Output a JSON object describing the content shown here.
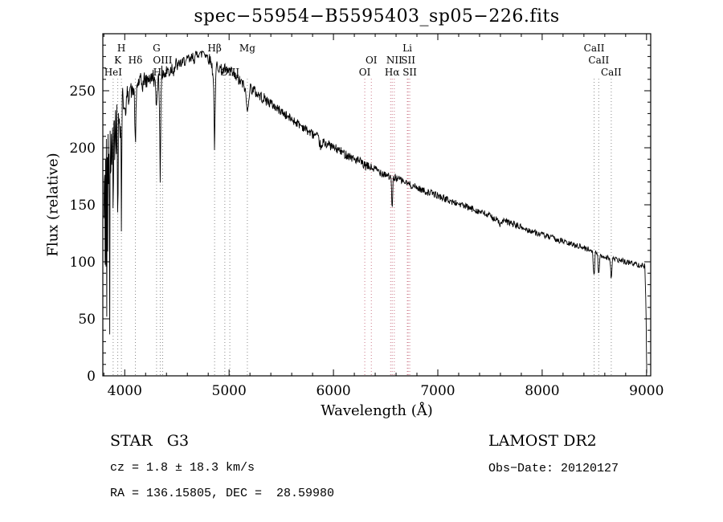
{
  "chart_data": {
    "type": "line",
    "title": "spec−55954−B5595403_sp05−226.fits",
    "xlabel": "Wavelength (Å)",
    "ylabel": "Flux (relative)",
    "xlim": [
      3790,
      9040
    ],
    "ylim": [
      0,
      300
    ],
    "xticks": [
      4000,
      5000,
      6000,
      7000,
      8000,
      9000
    ],
    "yticks": [
      0,
      50,
      100,
      150,
      200,
      250
    ],
    "x_minor_step": 200,
    "y_minor_step": 10,
    "grid": false,
    "line_color": "#000000",
    "marker_color_gray": "#8a8a8a",
    "marker_color_red": "#cc7788",
    "spectral_lines": [
      {
        "label": "HeI",
        "wl": 3889,
        "row": 3,
        "color": "#8a8a8a"
      },
      {
        "label": "K",
        "wl": 3933,
        "row": 2,
        "color": "#8a8a8a"
      },
      {
        "label": "H",
        "wl": 3968,
        "row": 1,
        "color": "#8a8a8a"
      },
      {
        "label": "Hδ",
        "wl": 4102,
        "row": 2,
        "color": "#8a8a8a"
      },
      {
        "label": "G",
        "wl": 4305,
        "row": 1,
        "color": "#8a8a8a"
      },
      {
        "label": "Hγ",
        "wl": 4340,
        "row": 3,
        "color": "#8a8a8a"
      },
      {
        "label": "OIII",
        "wl": 4363,
        "row": 2,
        "color": "#8a8a8a"
      },
      {
        "label": "Hβ",
        "wl": 4861,
        "row": 1,
        "color": "#8a8a8a"
      },
      {
        "label": "",
        "wl": 4959,
        "row": 3,
        "color": "#8a8a8a"
      },
      {
        "label": "OIII",
        "wl": 5007,
        "row": 3,
        "color": "#8a8a8a"
      },
      {
        "label": "Mg",
        "wl": 5175,
        "row": 1,
        "color": "#8a8a8a"
      },
      {
        "label": "OI",
        "wl": 6300,
        "row": 3,
        "color": "#cc7788"
      },
      {
        "label": "OI",
        "wl": 6363,
        "row": 2,
        "color": "#cc7788"
      },
      {
        "label": "",
        "wl": 6548,
        "row": 2,
        "color": "#cc7788"
      },
      {
        "label": "Hα",
        "wl": 6563,
        "row": 3,
        "color": "#cc7788"
      },
      {
        "label": "NII",
        "wl": 6583,
        "row": 2,
        "color": "#cc7788"
      },
      {
        "label": "Li",
        "wl": 6708,
        "row": 1,
        "color": "#cc7788"
      },
      {
        "label": "SII",
        "wl": 6716,
        "row": 2,
        "color": "#cc7788"
      },
      {
        "label": "SII",
        "wl": 6731,
        "row": 3,
        "color": "#cc7788"
      },
      {
        "label": "CaII",
        "wl": 8498,
        "row": 1,
        "color": "#8a8a8a"
      },
      {
        "label": "CaII",
        "wl": 8542,
        "row": 2,
        "color": "#8a8a8a"
      },
      {
        "label": "CaII",
        "wl": 8662,
        "row": 3,
        "color": "#8a8a8a"
      }
    ],
    "spectrum": {
      "seed": 42,
      "noise_regions": [
        [
          3790,
          4000,
          16
        ],
        [
          4000,
          4500,
          7
        ],
        [
          4500,
          5400,
          5
        ],
        [
          5400,
          6600,
          4
        ],
        [
          6600,
          7800,
          3
        ],
        [
          7800,
          9040,
          2.5
        ]
      ],
      "points": [
        [
          3800,
          135
        ],
        [
          3806,
          190
        ],
        [
          3810,
          140
        ],
        [
          3813,
          68
        ],
        [
          3816,
          200
        ],
        [
          3820,
          95
        ],
        [
          3824,
          215
        ],
        [
          3828,
          48
        ],
        [
          3832,
          180
        ],
        [
          3836,
          110
        ],
        [
          3840,
          220
        ],
        [
          3845,
          140
        ],
        [
          3850,
          218
        ],
        [
          3856,
          46
        ],
        [
          3860,
          215
        ],
        [
          3866,
          150
        ],
        [
          3872,
          228
        ],
        [
          3878,
          165
        ],
        [
          3884,
          232
        ],
        [
          3889,
          122
        ],
        [
          3894,
          226
        ],
        [
          3900,
          238
        ],
        [
          3906,
          180
        ],
        [
          3912,
          232
        ],
        [
          3920,
          205
        ],
        [
          3926,
          238
        ],
        [
          3933,
          116
        ],
        [
          3940,
          232
        ],
        [
          3948,
          240
        ],
        [
          3955,
          200
        ],
        [
          3962,
          238
        ],
        [
          3968,
          136
        ],
        [
          3975,
          238
        ],
        [
          3985,
          244
        ],
        [
          4000,
          240
        ],
        [
          4010,
          222
        ],
        [
          4020,
          250
        ],
        [
          4035,
          242
        ],
        [
          4050,
          254
        ],
        [
          4070,
          248
        ],
        [
          4090,
          252
        ],
        [
          4097,
          222
        ],
        [
          4102,
          192
        ],
        [
          4108,
          228
        ],
        [
          4115,
          254
        ],
        [
          4130,
          257
        ],
        [
          4150,
          259
        ],
        [
          4170,
          254
        ],
        [
          4190,
          261
        ],
        [
          4210,
          257
        ],
        [
          4230,
          263
        ],
        [
          4250,
          259
        ],
        [
          4270,
          264
        ],
        [
          4290,
          257
        ],
        [
          4300,
          242
        ],
        [
          4305,
          234
        ],
        [
          4312,
          254
        ],
        [
          4325,
          263
        ],
        [
          4334,
          232
        ],
        [
          4340,
          176
        ],
        [
          4347,
          237
        ],
        [
          4355,
          265
        ],
        [
          4370,
          267
        ],
        [
          4390,
          263
        ],
        [
          4410,
          269
        ],
        [
          4430,
          266
        ],
        [
          4450,
          271
        ],
        [
          4470,
          269
        ],
        [
          4490,
          273
        ],
        [
          4510,
          271
        ],
        [
          4530,
          275
        ],
        [
          4550,
          273
        ],
        [
          4570,
          277
        ],
        [
          4590,
          275
        ],
        [
          4610,
          278
        ],
        [
          4630,
          276
        ],
        [
          4650,
          280
        ],
        [
          4670,
          278
        ],
        [
          4690,
          282
        ],
        [
          4710,
          284
        ],
        [
          4730,
          281
        ],
        [
          4750,
          285
        ],
        [
          4770,
          283
        ],
        [
          4790,
          280
        ],
        [
          4810,
          278
        ],
        [
          4830,
          275
        ],
        [
          4850,
          262
        ],
        [
          4861,
          196
        ],
        [
          4872,
          260
        ],
        [
          4880,
          273
        ],
        [
          4900,
          271
        ],
        [
          4920,
          269
        ],
        [
          4940,
          267
        ],
        [
          4960,
          269
        ],
        [
          4980,
          266
        ],
        [
          5000,
          268
        ],
        [
          5030,
          265
        ],
        [
          5060,
          262
        ],
        [
          5090,
          259
        ],
        [
          5120,
          257
        ],
        [
          5150,
          253
        ],
        [
          5167,
          240
        ],
        [
          5175,
          228
        ],
        [
          5185,
          242
        ],
        [
          5200,
          253
        ],
        [
          5230,
          251
        ],
        [
          5260,
          248
        ],
        [
          5290,
          246
        ],
        [
          5320,
          244
        ],
        [
          5350,
          242
        ],
        [
          5400,
          239
        ],
        [
          5450,
          235
        ],
        [
          5500,
          232
        ],
        [
          5550,
          228
        ],
        [
          5600,
          225
        ],
        [
          5650,
          222
        ],
        [
          5700,
          219
        ],
        [
          5750,
          215
        ],
        [
          5800,
          212
        ],
        [
          5850,
          209
        ],
        [
          5889,
          198
        ],
        [
          5900,
          205
        ],
        [
          5950,
          203
        ],
        [
          6000,
          200
        ],
        [
          6050,
          198
        ],
        [
          6100,
          195
        ],
        [
          6150,
          193
        ],
        [
          6200,
          190
        ],
        [
          6250,
          188
        ],
        [
          6300,
          184
        ],
        [
          6350,
          183
        ],
        [
          6400,
          181
        ],
        [
          6450,
          179
        ],
        [
          6500,
          177
        ],
        [
          6540,
          175
        ],
        [
          6555,
          168
        ],
        [
          6563,
          144
        ],
        [
          6572,
          171
        ],
        [
          6590,
          174
        ],
        [
          6620,
          173
        ],
        [
          6660,
          171
        ],
        [
          6700,
          169
        ],
        [
          6750,
          167
        ],
        [
          6800,
          165
        ],
        [
          6850,
          163
        ],
        [
          6900,
          161
        ],
        [
          6950,
          160
        ],
        [
          7000,
          158
        ],
        [
          7050,
          156
        ],
        [
          7100,
          154
        ],
        [
          7150,
          152
        ],
        [
          7200,
          151
        ],
        [
          7250,
          149
        ],
        [
          7300,
          147
        ],
        [
          7350,
          146
        ],
        [
          7400,
          144
        ],
        [
          7450,
          142
        ],
        [
          7500,
          140
        ],
        [
          7550,
          138
        ],
        [
          7590,
          134
        ],
        [
          7605,
          132
        ],
        [
          7620,
          136
        ],
        [
          7650,
          135
        ],
        [
          7700,
          134
        ],
        [
          7750,
          132
        ],
        [
          7800,
          130
        ],
        [
          7850,
          128
        ],
        [
          7900,
          127
        ],
        [
          7950,
          125
        ],
        [
          8000,
          124
        ],
        [
          8050,
          122
        ],
        [
          8100,
          121
        ],
        [
          8150,
          119
        ],
        [
          8200,
          118
        ],
        [
          8250,
          116
        ],
        [
          8300,
          115
        ],
        [
          8350,
          114
        ],
        [
          8400,
          112
        ],
        [
          8440,
          111
        ],
        [
          8480,
          110
        ],
        [
          8498,
          88
        ],
        [
          8510,
          108
        ],
        [
          8530,
          107
        ],
        [
          8542,
          86
        ],
        [
          8555,
          106
        ],
        [
          8580,
          105
        ],
        [
          8620,
          104
        ],
        [
          8650,
          103
        ],
        [
          8662,
          84
        ],
        [
          8675,
          103
        ],
        [
          8700,
          102
        ],
        [
          8750,
          101
        ],
        [
          8800,
          100
        ],
        [
          8850,
          99
        ],
        [
          8900,
          98
        ],
        [
          8950,
          97
        ],
        [
          8985,
          96
        ],
        [
          8995,
          60
        ],
        [
          9002,
          4
        ]
      ]
    }
  },
  "footer": {
    "class_label": "STAR   G3",
    "survey": "LAMOST DR2",
    "cz": "cz = 1.8 ± 18.3 km/s",
    "obs_date": "Obs−Date: 20120127",
    "ra_dec": "RA = 136.15805, DEC =  28.59980"
  }
}
